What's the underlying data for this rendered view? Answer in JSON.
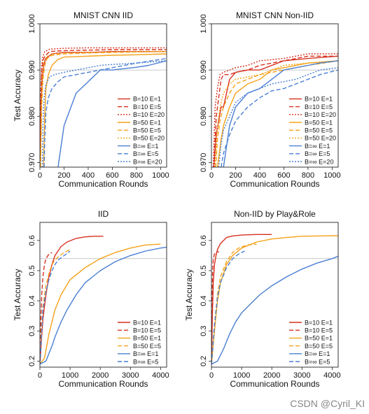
{
  "colors": {
    "red": "#d7301f",
    "orange": "#f5a21a",
    "blue": "#4a7fd4",
    "ref": "#b8b8b8"
  },
  "watermark": "CSDN @Cyril_KI",
  "chart_data": [
    {
      "type": "line",
      "title": "MNIST CNN IID",
      "xlabel": "Communication Rounds",
      "ylabel": "Test Accuracy",
      "xlim": [
        0,
        1050
      ],
      "ylim": [
        0.969,
        1.0
      ],
      "xticks": [
        0,
        200,
        400,
        600,
        800,
        1000
      ],
      "yticks": [
        0.97,
        0.98,
        0.99,
        1.0
      ],
      "yticklabels": [
        "0.970",
        "0.980",
        "0.990",
        "1.000"
      ],
      "reference_line": 0.99,
      "legend": "lower-right",
      "series": [
        {
          "name": "B=10  E=1",
          "color": "red",
          "dash": "solid",
          "x": [
            0,
            10,
            20,
            30,
            50,
            100,
            200,
            400,
            600,
            800,
            1050
          ],
          "y": [
            0.969,
            0.982,
            0.988,
            0.991,
            0.9925,
            0.9935,
            0.9938,
            0.9938,
            0.994,
            0.994,
            0.994
          ]
        },
        {
          "name": "B=10  E=5",
          "color": "red",
          "dash": "dashed",
          "x": [
            0,
            8,
            15,
            25,
            40,
            80,
            200,
            400,
            600,
            800,
            1050
          ],
          "y": [
            0.969,
            0.985,
            0.99,
            0.992,
            0.993,
            0.994,
            0.9942,
            0.9943,
            0.9944,
            0.9944,
            0.9944
          ]
        },
        {
          "name": "B=10  E=20",
          "color": "red",
          "dash": "dotted",
          "x": [
            0,
            8,
            15,
            25,
            40,
            80,
            200,
            400,
            600,
            800,
            1050
          ],
          "y": [
            0.969,
            0.986,
            0.991,
            0.993,
            0.994,
            0.9945,
            0.9947,
            0.9948,
            0.9948,
            0.9948,
            0.9948
          ]
        },
        {
          "name": "B=50  E=1",
          "color": "orange",
          "dash": "solid",
          "x": [
            30,
            40,
            50,
            70,
            100,
            150,
            200,
            400,
            600,
            800,
            1050
          ],
          "y": [
            0.969,
            0.98,
            0.986,
            0.989,
            0.991,
            0.9923,
            0.9928,
            0.993,
            0.9932,
            0.9933,
            0.9935
          ]
        },
        {
          "name": "B=50  E=5",
          "color": "orange",
          "dash": "dashed",
          "x": [
            5,
            15,
            25,
            40,
            60,
            100,
            200,
            400,
            600,
            800,
            1050
          ],
          "y": [
            0.969,
            0.982,
            0.988,
            0.991,
            0.9925,
            0.9932,
            0.9935,
            0.9937,
            0.9938,
            0.9939,
            0.994
          ]
        },
        {
          "name": "B=50  E=20",
          "color": "orange",
          "dash": "dotted",
          "x": [
            5,
            12,
            20,
            30,
            50,
            100,
            200,
            400,
            600,
            800,
            1050
          ],
          "y": [
            0.969,
            0.984,
            0.989,
            0.9915,
            0.9928,
            0.9935,
            0.9937,
            0.9938,
            0.9939,
            0.994,
            0.994
          ]
        },
        {
          "name": "B=∞  E=1",
          "color": "blue",
          "dash": "solid",
          "x": [
            150,
            200,
            300,
            400,
            500,
            600,
            700,
            800,
            900,
            1050
          ],
          "y": [
            0.969,
            0.978,
            0.985,
            0.9875,
            0.99,
            0.99,
            0.9903,
            0.9906,
            0.991,
            0.992
          ]
        },
        {
          "name": "B=∞  E=5",
          "color": "blue",
          "dash": "dashed",
          "x": [
            35,
            40,
            50,
            70,
            100,
            150,
            200,
            300,
            400,
            500,
            600,
            800,
            1050
          ],
          "y": [
            0.969,
            0.975,
            0.981,
            0.984,
            0.986,
            0.9875,
            0.9885,
            0.989,
            0.9895,
            0.99,
            0.9905,
            0.9915,
            0.9925
          ]
        },
        {
          "name": "B=∞  E=20",
          "color": "blue",
          "dash": "dotted",
          "x": [
            20,
            25,
            35,
            50,
            80,
            120,
            200,
            300,
            400,
            500,
            600,
            800,
            1050
          ],
          "y": [
            0.969,
            0.978,
            0.984,
            0.987,
            0.9885,
            0.989,
            0.9895,
            0.99,
            0.9905,
            0.991,
            0.9912,
            0.9915,
            0.992
          ]
        }
      ]
    },
    {
      "type": "line",
      "title": "MNIST CNN Non-IID",
      "xlabel": "Communication Rounds",
      "ylabel": "",
      "xlim": [
        0,
        1050
      ],
      "ylim": [
        0.969,
        1.0
      ],
      "xticks": [
        0,
        200,
        400,
        600,
        800,
        1000
      ],
      "yticks": [
        0.97,
        0.98,
        0.99,
        1.0
      ],
      "yticklabels": [
        "0.970",
        "0.980",
        "0.990",
        "1.000"
      ],
      "reference_line": 0.99,
      "legend": "lower-right",
      "series": [
        {
          "name": "B=10  E=1",
          "color": "red",
          "dash": "solid",
          "x": [
            20,
            40,
            60,
            80,
            100,
            150,
            200,
            300,
            400,
            600,
            800,
            1050
          ],
          "y": [
            0.969,
            0.976,
            0.979,
            0.982,
            0.982,
            0.988,
            0.9895,
            0.99,
            0.99,
            0.992,
            0.9925,
            0.993
          ]
        },
        {
          "name": "B=10  E=5",
          "color": "red",
          "dash": "dashed",
          "x": [
            20,
            40,
            60,
            80,
            100,
            150,
            200,
            300,
            400,
            600,
            800,
            1050
          ],
          "y": [
            0.969,
            0.98,
            0.984,
            0.988,
            0.989,
            0.989,
            0.9895,
            0.99,
            0.991,
            0.992,
            0.993,
            0.993
          ]
        },
        {
          "name": "B=10  E=20",
          "color": "red",
          "dash": "dotted",
          "x": [
            15,
            30,
            50,
            70,
            100,
            150,
            200,
            300,
            400,
            600,
            800,
            1050
          ],
          "y": [
            0.969,
            0.982,
            0.986,
            0.989,
            0.9895,
            0.99,
            0.9905,
            0.991,
            0.992,
            0.9925,
            0.9935,
            0.9935
          ]
        },
        {
          "name": "B=50  E=1",
          "color": "orange",
          "dash": "solid",
          "x": [
            50,
            80,
            100,
            150,
            200,
            300,
            400,
            500,
            600,
            700,
            800,
            1050
          ],
          "y": [
            0.969,
            0.975,
            0.978,
            0.982,
            0.985,
            0.987,
            0.988,
            0.99,
            0.9905,
            0.991,
            0.9915,
            0.992
          ]
        },
        {
          "name": "B=50  E=5",
          "color": "orange",
          "dash": "dashed",
          "x": [
            35,
            50,
            70,
            100,
            150,
            200,
            300,
            400,
            500,
            600,
            800,
            1050
          ],
          "y": [
            0.969,
            0.975,
            0.979,
            0.982,
            0.985,
            0.987,
            0.988,
            0.989,
            0.9895,
            0.99,
            0.991,
            0.992
          ]
        },
        {
          "name": "B=50  E=20",
          "color": "orange",
          "dash": "dotted",
          "x": [
            30,
            45,
            60,
            80,
            100,
            150,
            200,
            300,
            400,
            500,
            600,
            800,
            1050
          ],
          "y": [
            0.969,
            0.976,
            0.98,
            0.983,
            0.985,
            0.987,
            0.988,
            0.9885,
            0.989,
            0.99,
            0.991,
            0.9915,
            0.992
          ]
        },
        {
          "name": "B=∞  E=1",
          "color": "blue",
          "dash": "solid",
          "x": [
            100,
            150,
            200,
            300,
            400,
            500,
            600,
            700,
            800,
            900,
            1050
          ],
          "y": [
            0.969,
            0.978,
            0.982,
            0.985,
            0.986,
            0.988,
            0.99,
            0.9905,
            0.991,
            0.9915,
            0.992
          ]
        },
        {
          "name": "B=∞  E=5",
          "color": "blue",
          "dash": "dashed",
          "x": [
            80,
            100,
            150,
            200,
            300,
            400,
            500,
            600,
            700,
            800,
            900,
            1050
          ],
          "y": [
            0.969,
            0.972,
            0.976,
            0.979,
            0.982,
            0.984,
            0.9855,
            0.986,
            0.987,
            0.988,
            0.989,
            0.99
          ]
        },
        {
          "name": "B=∞  E=20",
          "color": "blue",
          "dash": "dotted",
          "x": [
            60,
            80,
            100,
            150,
            200,
            300,
            400,
            500,
            600,
            700,
            800,
            900,
            1050
          ],
          "y": [
            0.969,
            0.974,
            0.977,
            0.98,
            0.983,
            0.985,
            0.986,
            0.987,
            0.9875,
            0.988,
            0.989,
            0.99,
            0.9905
          ]
        }
      ]
    },
    {
      "type": "line",
      "title": "IID",
      "xlabel": "Communication Rounds",
      "ylabel": "Test Accuracy",
      "xlim": [
        0,
        4200
      ],
      "ylim": [
        0.18,
        0.66
      ],
      "xticks": [
        0,
        1000,
        2000,
        3000,
        4000
      ],
      "yticks": [
        0.2,
        0.3,
        0.4,
        0.5,
        0.6
      ],
      "yticklabels": [
        "0.2",
        "0.3",
        "0.4",
        "0.5",
        "0.6"
      ],
      "reference_line": 0.54,
      "legend": "lower-right",
      "series": [
        {
          "name": "B=10  E=1",
          "color": "red",
          "dash": "solid",
          "x": [
            0,
            50,
            100,
            200,
            300,
            400,
            500,
            700,
            900,
            1200,
            1500,
            1800,
            2100
          ],
          "y": [
            0.19,
            0.27,
            0.34,
            0.42,
            0.48,
            0.52,
            0.55,
            0.58,
            0.595,
            0.607,
            0.612,
            0.614,
            0.614
          ]
        },
        {
          "name": "B=10  E=5",
          "color": "red",
          "dash": "dashed",
          "x": [
            0,
            30,
            60,
            100,
            150,
            200,
            300,
            400
          ],
          "y": [
            0.19,
            0.34,
            0.42,
            0.48,
            0.52,
            0.54,
            0.555,
            0.56
          ]
        },
        {
          "name": "B=50  E=1",
          "color": "orange",
          "dash": "solid",
          "x": [
            0,
            150,
            300,
            500,
            700,
            1000,
            1500,
            2000,
            2500,
            3000,
            3500,
            4000
          ],
          "y": [
            0.19,
            0.21,
            0.29,
            0.37,
            0.42,
            0.47,
            0.51,
            0.54,
            0.56,
            0.575,
            0.585,
            0.588
          ]
        },
        {
          "name": "B=50  E=5",
          "color": "orange",
          "dash": "dashed",
          "x": [
            0,
            50,
            100,
            200,
            300,
            400,
            500,
            600,
            800,
            1000
          ],
          "y": [
            0.19,
            0.3,
            0.38,
            0.45,
            0.49,
            0.52,
            0.535,
            0.545,
            0.56,
            0.57
          ]
        },
        {
          "name": "B=∞  E=1",
          "color": "blue",
          "dash": "solid",
          "x": [
            0,
            200,
            400,
            500,
            700,
            900,
            1200,
            1500,
            2000,
            2500,
            3000,
            3500,
            4000,
            4200
          ],
          "y": [
            0.19,
            0.2,
            0.25,
            0.28,
            0.33,
            0.37,
            0.42,
            0.46,
            0.5,
            0.53,
            0.55,
            0.565,
            0.575,
            0.578
          ]
        },
        {
          "name": "B=∞  E=5",
          "color": "blue",
          "dash": "dashed",
          "x": [
            0,
            50,
            100,
            200,
            300,
            400,
            500,
            600,
            800,
            1000
          ],
          "y": [
            0.19,
            0.28,
            0.37,
            0.43,
            0.47,
            0.5,
            0.52,
            0.535,
            0.55,
            0.565
          ]
        }
      ]
    },
    {
      "type": "line",
      "title": "Non-IID by Play&Role",
      "xlabel": "Communication Rounds",
      "ylabel": "Test Accuracy",
      "xlim": [
        0,
        4200
      ],
      "ylim": [
        0.18,
        0.66
      ],
      "xticks": [
        0,
        1000,
        2000,
        3000,
        4000
      ],
      "yticks": [
        0.2,
        0.3,
        0.4,
        0.5,
        0.6
      ],
      "yticklabels": [
        "0.2",
        "0.3",
        "0.4",
        "0.5",
        "0.6"
      ],
      "reference_line": 0.54,
      "legend": "lower-right",
      "series": [
        {
          "name": "B=10  E=1",
          "color": "red",
          "dash": "solid",
          "x": [
            0,
            30,
            60,
            100,
            150,
            200,
            300,
            500,
            700,
            1000,
            1500,
            2000
          ],
          "y": [
            0.19,
            0.35,
            0.46,
            0.52,
            0.55,
            0.57,
            0.59,
            0.61,
            0.615,
            0.618,
            0.62,
            0.62
          ]
        },
        {
          "name": "B=10  E=5",
          "color": "red",
          "dash": "dashed",
          "x": [
            0,
            20,
            40,
            60,
            100,
            150,
            250
          ],
          "y": [
            0.19,
            0.4,
            0.5,
            0.54,
            0.555,
            0.56,
            0.563
          ]
        },
        {
          "name": "B=50  E=1",
          "color": "orange",
          "dash": "solid",
          "x": [
            0,
            100,
            200,
            300,
            500,
            700,
            1000,
            1500,
            2000,
            2500,
            3000,
            3500,
            4200
          ],
          "y": [
            0.19,
            0.3,
            0.4,
            0.46,
            0.52,
            0.55,
            0.575,
            0.595,
            0.605,
            0.61,
            0.614,
            0.615,
            0.616
          ]
        },
        {
          "name": "B=50  E=5",
          "color": "orange",
          "dash": "dashed",
          "x": [
            0,
            100,
            200,
            300,
            500,
            700,
            900,
            1200,
            1500
          ],
          "y": [
            0.19,
            0.32,
            0.42,
            0.48,
            0.53,
            0.56,
            0.575,
            0.585,
            0.588
          ]
        },
        {
          "name": "B=∞  E=1",
          "color": "blue",
          "dash": "solid",
          "x": [
            0,
            200,
            400,
            600,
            800,
            1000,
            1300,
            1600,
            2000,
            2500,
            3000,
            3500,
            4000,
            4200
          ],
          "y": [
            0.19,
            0.2,
            0.24,
            0.29,
            0.33,
            0.36,
            0.39,
            0.42,
            0.45,
            0.48,
            0.505,
            0.525,
            0.54,
            0.548
          ]
        },
        {
          "name": "B=∞  E=5",
          "color": "blue",
          "dash": "dashed",
          "x": [
            0,
            100,
            200,
            300,
            500,
            700,
            900,
            1100
          ],
          "y": [
            0.19,
            0.32,
            0.41,
            0.46,
            0.51,
            0.54,
            0.555,
            0.565
          ]
        }
      ]
    }
  ]
}
